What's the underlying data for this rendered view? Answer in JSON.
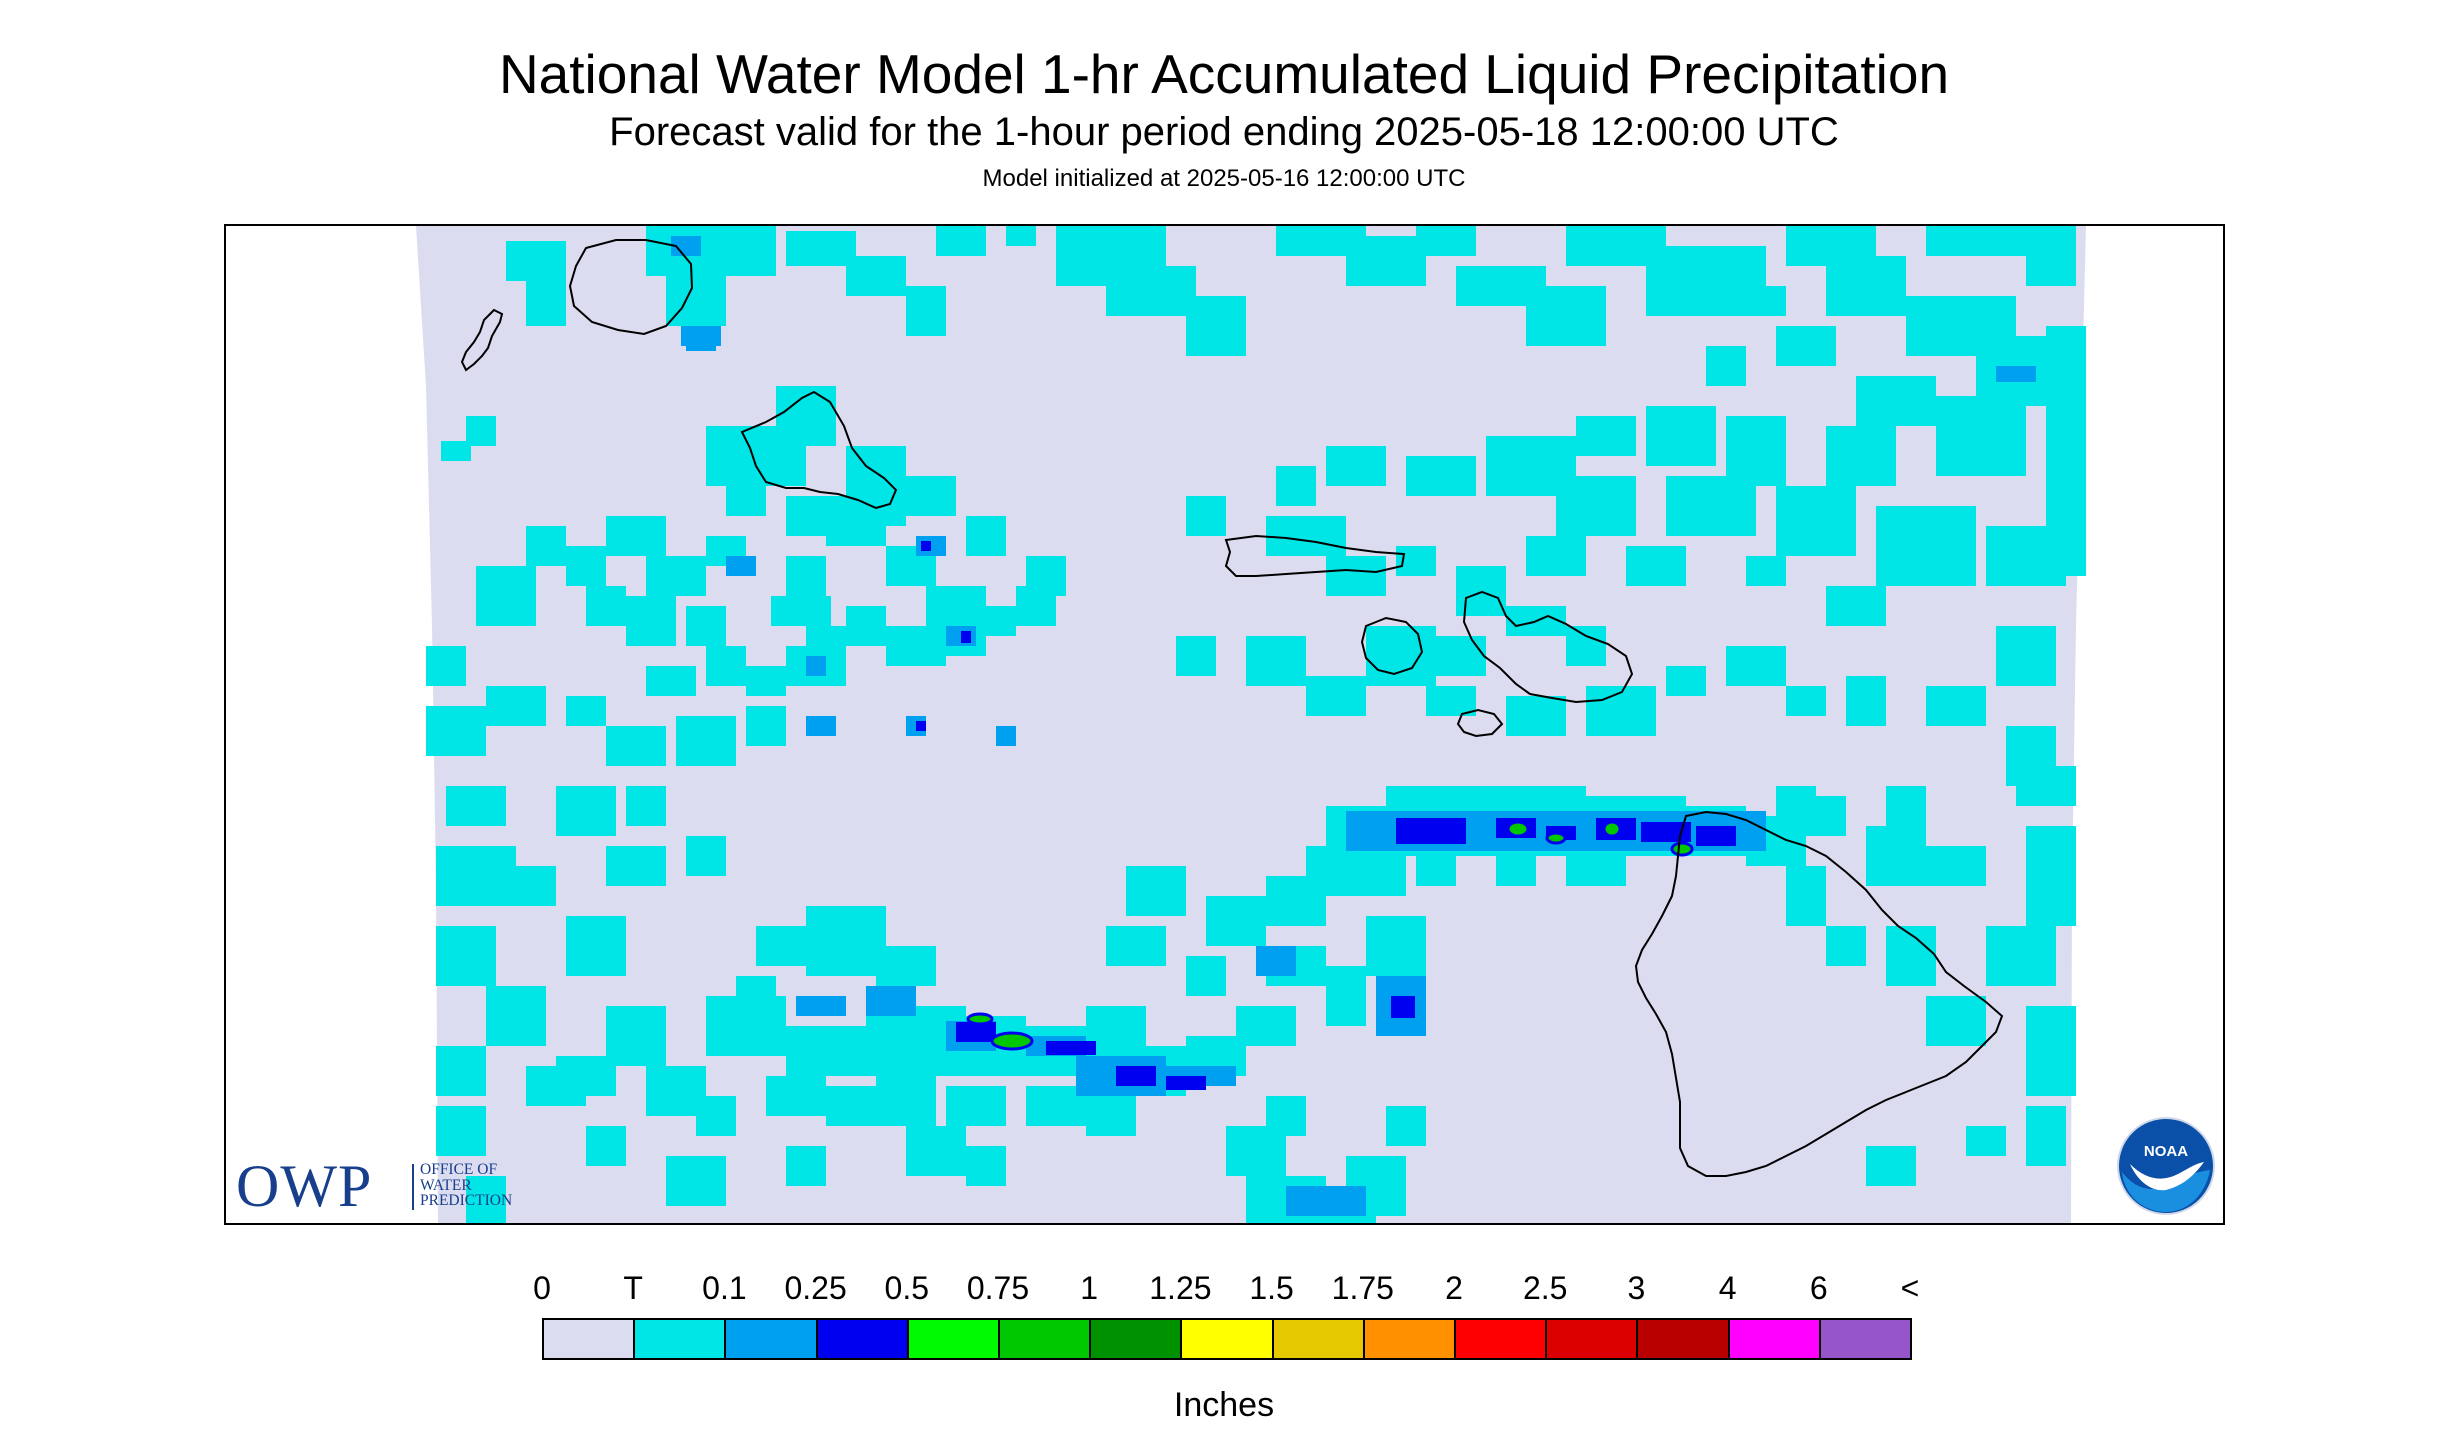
{
  "header": {
    "title": "National Water Model 1-hr Accumulated Liquid Precipitation",
    "subtitle": "Forecast valid for the 1-hour period ending 2025-05-18 12:00:00 UTC",
    "model_init": "Model initialized at 2025-05-16 12:00:00 UTC"
  },
  "logos": {
    "owp_abbrev": "OWP",
    "owp_line1": "OFFICE OF",
    "owp_line2": "WATER",
    "owp_line3": "PREDICTION",
    "noaa_text": "NOAA"
  },
  "legend": {
    "labels": [
      "0",
      "T",
      "0.1",
      "0.25",
      "0.5",
      "0.75",
      "1",
      "1.25",
      "1.5",
      "1.75",
      "2",
      "2.5",
      "3",
      "4",
      "6",
      "<"
    ],
    "colors": [
      "#dcdcf0",
      "#00e6e6",
      "#00a0f0",
      "#0000f0",
      "#00fa00",
      "#00c800",
      "#009100",
      "#ffff00",
      "#e6c800",
      "#ff9100",
      "#ff0000",
      "#dc0000",
      "#b90000",
      "#ff00ff",
      "#9655c8"
    ],
    "units": "Inches"
  },
  "map": {
    "region": "Hawaiian Islands",
    "no_precip_color": "#dcdcf0",
    "trace_color": "#00e6e6",
    "light_color": "#00a0f0",
    "moderate_color": "#0000f0",
    "heavy_color": "#00c800",
    "coast_color": "#000000"
  }
}
